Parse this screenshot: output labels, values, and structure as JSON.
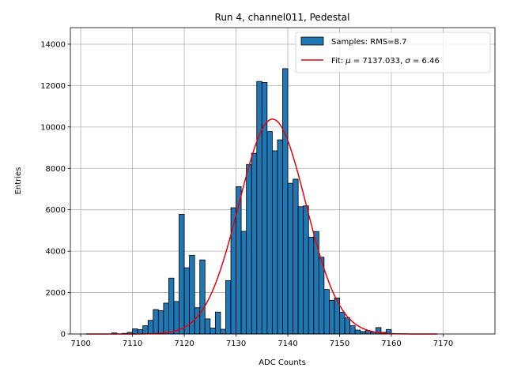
{
  "chart_data": {
    "type": "bar",
    "title": "Run 4, channel011, Pedestal",
    "xlabel": "ADC Counts",
    "ylabel": "Entries",
    "xlim": [
      7098,
      7180
    ],
    "ylim": [
      0,
      14800
    ],
    "xticks": [
      7100,
      7110,
      7120,
      7130,
      7140,
      7150,
      7160,
      7170
    ],
    "yticks": [
      0,
      2000,
      4000,
      6000,
      8000,
      10000,
      12000,
      14000
    ],
    "grid": true,
    "bar_color": "#1f77b4",
    "fit_color": "#e8000b",
    "bin_width": 1,
    "bins_x": [
      7106,
      7108,
      7109,
      7110,
      7111,
      7112,
      7113,
      7114,
      7115,
      7116,
      7117,
      7118,
      7119,
      7120,
      7121,
      7122,
      7123,
      7124,
      7125,
      7126,
      7127,
      7128,
      7129,
      7130,
      7131,
      7132,
      7133,
      7134,
      7135,
      7136,
      7137,
      7138,
      7139,
      7140,
      7141,
      7142,
      7143,
      7144,
      7145,
      7146,
      7147,
      7148,
      7149,
      7150,
      7151,
      7152,
      7153,
      7154,
      7155,
      7156,
      7157,
      7158,
      7159
    ],
    "counts": [
      50,
      30,
      80,
      250,
      210,
      400,
      660,
      1180,
      1130,
      1490,
      2700,
      1570,
      5780,
      3200,
      3800,
      1270,
      3580,
      730,
      290,
      1060,
      230,
      2580,
      6100,
      7120,
      4960,
      8190,
      8730,
      12200,
      12150,
      9780,
      8850,
      9380,
      12820,
      7280,
      7480,
      6150,
      6190,
      4680,
      4950,
      3710,
      2150,
      1630,
      1740,
      1060,
      780,
      400,
      190,
      120,
      160,
      90,
      310,
      80,
      220
    ],
    "fit": {
      "mu": 7137.033,
      "sigma": 6.46,
      "amplitude": 10380,
      "x_range": [
        7101,
        7169
      ]
    },
    "legend": {
      "position": "upper right",
      "entries": [
        {
          "kind": "bar",
          "label": "Samples: RMS=8.7"
        },
        {
          "kind": "line",
          "label_prefix": "Fit: ",
          "mu_symbol": "μ",
          "mu_text": " = 7137.033, ",
          "sigma_symbol": "σ",
          "sigma_text": " = 6.46"
        }
      ]
    }
  }
}
